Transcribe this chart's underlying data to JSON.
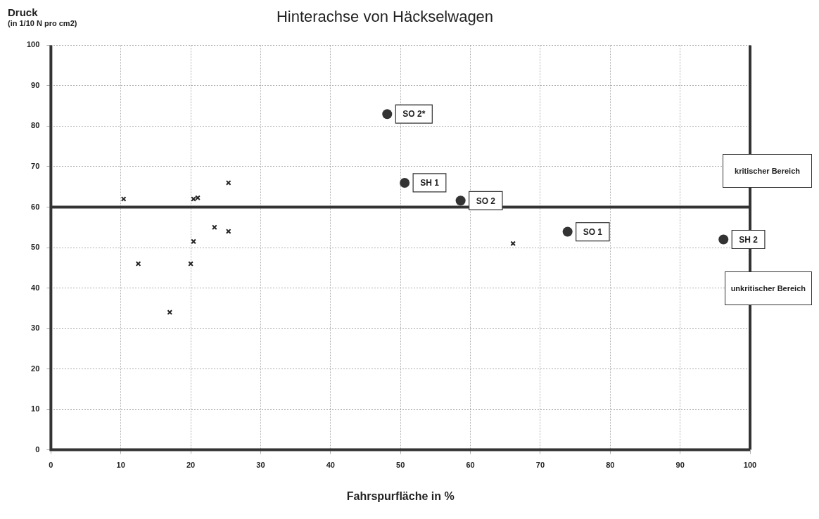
{
  "chart_data": {
    "type": "scatter",
    "title": "Hinterachse von Häckselwagen",
    "xlabel": "Fahrspurfläche in %",
    "ylabel": "Druck",
    "xlim": [
      0,
      100
    ],
    "ylim": [
      0,
      100
    ],
    "xticks": [
      0,
      10,
      20,
      30,
      40,
      50,
      60,
      70,
      80,
      90,
      100
    ],
    "yticks": [
      0,
      10,
      20,
      30,
      40,
      50,
      60,
      70,
      80,
      90,
      100
    ],
    "grid": true,
    "legend": false,
    "series": [
      {
        "color": "#222222",
        "marker": "cross",
        "x": [
          10.4,
          12.5,
          17.0,
          20.0,
          20.4,
          20.4,
          21.0,
          23.4,
          25.4,
          25.4,
          66.1
        ],
        "values": [
          62,
          46,
          34,
          46,
          51.5,
          62,
          62.3,
          55,
          54,
          66,
          51
        ]
      },
      {
        "color": "#333333",
        "marker": "circle",
        "x": [
          48.1,
          50.6,
          58.6,
          73.9,
          96.2
        ],
        "values": [
          83,
          66,
          61.6,
          53.9,
          52
        ]
      }
    ],
    "ref_lines": [
      {
        "axis": "y",
        "value": 60,
        "color": "#333333"
      },
      {
        "axis": "x",
        "value": 100,
        "color": "#333333"
      }
    ],
    "annotations": [
      {
        "text": "SO 2*",
        "x": 48.1,
        "y": 83
      },
      {
        "text": "SH 1",
        "x": 50.6,
        "y": 66
      },
      {
        "text": "SO 2",
        "x": 58.6,
        "y": 61.6
      },
      {
        "text": "SO 1",
        "x": 73.9,
        "y": 53.9
      },
      {
        "text": "SH 2",
        "x": 96.2,
        "y": 52
      },
      "(in 1/10 N pro cm2)",
      "kritischer Bereich",
      "unkritischer Bereich"
    ]
  }
}
